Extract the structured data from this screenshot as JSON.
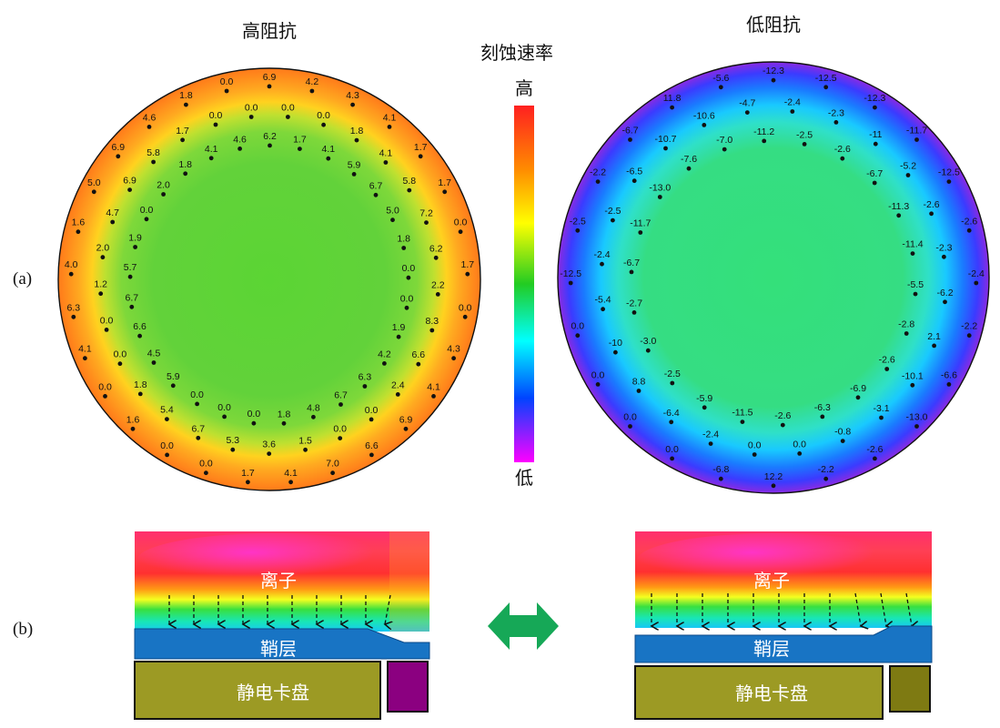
{
  "labels": {
    "panel_a": "(a)",
    "panel_b": "(b)",
    "left_title": "高阻抗",
    "right_title": "低阻抗",
    "colorbar_title": "刻蚀速率",
    "colorbar_high": "高",
    "colorbar_low": "低",
    "ions": "离子",
    "sheath": "鞘层",
    "chuck": "静电卡盘"
  },
  "colors": {
    "colorbar_stops": [
      "#ff2020",
      "#ff8c00",
      "#ffff00",
      "#22cc22",
      "#00ffff",
      "#0044ff",
      "#ff00ff"
    ],
    "sheath": "#1874c4",
    "chuck": "#9c9a24",
    "ring_left": "#8b0080",
    "ring_right": "#7e7a12",
    "arrow": "#16a857"
  },
  "wafer_left": {
    "values": [
      [
        "6.9",
        "4.2",
        "4.3",
        "4.1",
        "1.7",
        "1.7",
        "0.0",
        "1.7",
        "0.0",
        "4.3",
        "4.1",
        "6.9",
        "6.6"
      ],
      [
        "7.0",
        "4.1",
        "1.7",
        "0.0",
        "0.0",
        "1.6",
        "0.0",
        "4.1",
        "6.3",
        "4.0",
        "1.6",
        "5.0"
      ],
      [
        "6.9",
        "4.6",
        "1.8",
        "0.0",
        "0.0",
        "0.0",
        "1.8",
        "4.1",
        "5.8",
        "7.2",
        "6.2",
        "2.2"
      ],
      [
        "8.3",
        "6.6",
        "2.4",
        "0.0",
        "0.0",
        "1.5",
        "3.6",
        "5.3"
      ],
      [
        "6.7",
        "5.4",
        "1.8",
        "0.0",
        "0.0",
        "1.2",
        "2.0",
        "4.7"
      ],
      [
        "6.9",
        "5.8",
        "1.7",
        "0.0",
        "0.0",
        "1.7",
        "4.1",
        "5.9"
      ],
      [
        "6.7",
        "5.0",
        "1.8",
        "0.0",
        "0.0",
        "1.9",
        "4.2",
        "6.3"
      ],
      [
        "6.7",
        "4.8",
        "1.8",
        "0.0",
        "0.0",
        "0.0",
        "5.9",
        "4.5",
        "6.6"
      ],
      [
        "6.7",
        "5.7",
        "1.9",
        "0.0",
        "2.0",
        "1.8",
        "4.1",
        "4.6",
        "6.2"
      ]
    ]
  },
  "wafer_right": {
    "values": [
      [
        "-12.3",
        "-12.5",
        "-12.3",
        "-11.7",
        "-12.5",
        "-2.6",
        "-2.4",
        "-2.2",
        "-6.6"
      ],
      [
        "-13.0",
        "-2.6",
        "-2.2",
        "12.2",
        "-6.8",
        "0.0",
        "0.0",
        "0.0",
        "0.0"
      ],
      [
        "-12.5",
        "-2.5",
        "-2.2",
        "-6.7",
        "11.8",
        "-5.6",
        "-2.4",
        "-2.3"
      ],
      [
        "-11",
        "-5.2",
        "-2.6",
        "-2.3",
        "-6.2",
        "2.1"
      ],
      [
        "-10.1",
        "-3.1",
        "-0.8",
        "0.0",
        "0.0",
        "-2.4",
        "-6.4",
        "8.8"
      ],
      [
        "-10",
        "-5.4",
        "-2.4",
        "-2.5",
        "-6.5",
        "-10.7"
      ],
      [
        "-10.6",
        "-4.7",
        "-2.5",
        "-2.6",
        "-6.7",
        "-11.3"
      ],
      [
        "-11.4",
        "-5.5",
        "-2.8",
        "-2.6",
        "-6.9",
        "-6.3",
        "-2.6"
      ],
      [
        "-11.5",
        "-5.9",
        "-2.5",
        "-3.0",
        "-2.7",
        "-6.7",
        "-11.7"
      ],
      [
        "-13.0",
        "-7.6",
        "-7.0",
        "-11.2"
      ]
    ]
  }
}
